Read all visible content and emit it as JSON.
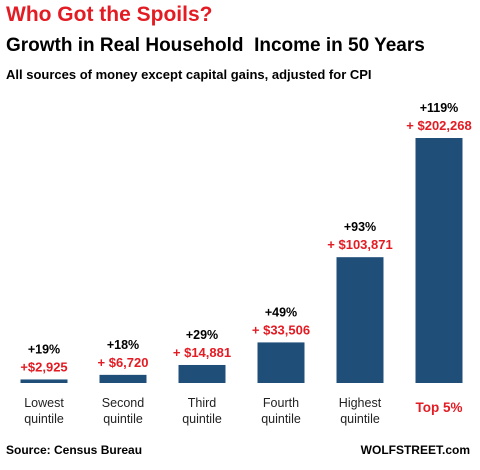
{
  "title": "Who Got the Spoils?",
  "subtitle": "Growth in Real Household  Income in 50 Years",
  "note": "All sources of money except capital gains, adjusted for CPI",
  "source": "Source: Census Bureau",
  "credit": "WOLFSTREET.com",
  "colors": {
    "bar": "#1f4e79",
    "title": "#e31b23",
    "amount": "#e31b23",
    "highlight_label": "#e31b23"
  },
  "chart_data": {
    "type": "bar",
    "title": "Who Got the Spoils?",
    "subtitle": "Growth in Real Household  Income in 50 Years",
    "xlabel": "",
    "ylabel": "",
    "ylim": [
      0,
      202268
    ],
    "grid": false,
    "categories": [
      [
        "Lowest",
        "quintile"
      ],
      [
        "Second",
        "quintile"
      ],
      [
        "Third",
        "quintile"
      ],
      [
        "Fourth",
        "quintile"
      ],
      [
        "Highest",
        "quintile"
      ],
      [
        "Top 5%"
      ]
    ],
    "highlighted_category": 5,
    "values": [
      2925,
      6720,
      14881,
      33506,
      103871,
      202268
    ],
    "percent_labels": [
      "+19%",
      "+18%",
      "+29%",
      "+49%",
      "+93%",
      "+119%"
    ],
    "amount_labels": [
      "+$2,925",
      "+ $6,720",
      "+ $14,881",
      "+ $33,506",
      "+ $103,871",
      "+ $202,268"
    ]
  }
}
